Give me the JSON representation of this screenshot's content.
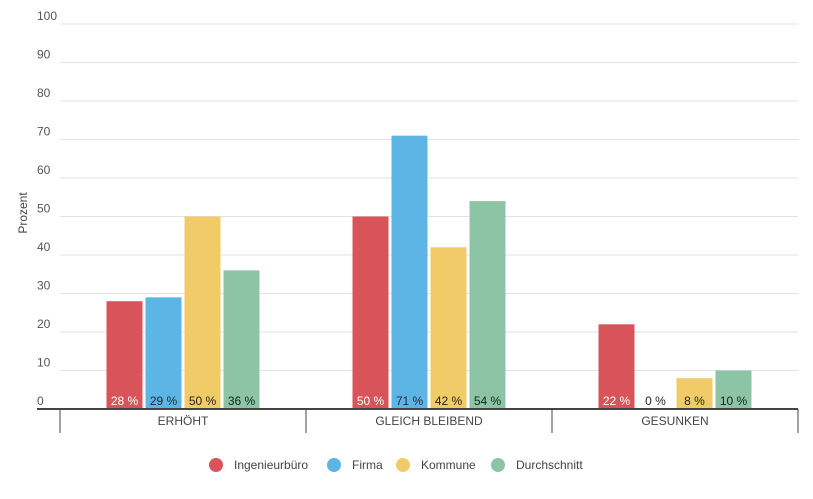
{
  "chart_data": {
    "type": "bar",
    "title": "",
    "xlabel": "",
    "ylabel": "Prozent",
    "ylim": [
      0,
      100
    ],
    "yticks": [
      0,
      10,
      20,
      30,
      40,
      50,
      60,
      70,
      80,
      90,
      100
    ],
    "grid": true,
    "legend_position": "bottom",
    "categories": [
      "ERHÖHT",
      "GLEICH BLEIBEND",
      "GESUNKEN"
    ],
    "value_suffix": " %",
    "series": [
      {
        "name": "Ingenieurbüro",
        "values": [
          28,
          50,
          22
        ],
        "color": "#d9545a",
        "label_color": "#ffffff"
      },
      {
        "name": "Firma",
        "values": [
          29,
          71,
          0
        ],
        "color": "#5db5e5",
        "label_color": "#1a2a3a"
      },
      {
        "name": "Kommune",
        "values": [
          50,
          42,
          8
        ],
        "color": "#f0cb68",
        "label_color": "#2a2410"
      },
      {
        "name": "Durchschnitt",
        "values": [
          36,
          54,
          10
        ],
        "color": "#8ec4a6",
        "label_color": "#10261a"
      }
    ]
  }
}
